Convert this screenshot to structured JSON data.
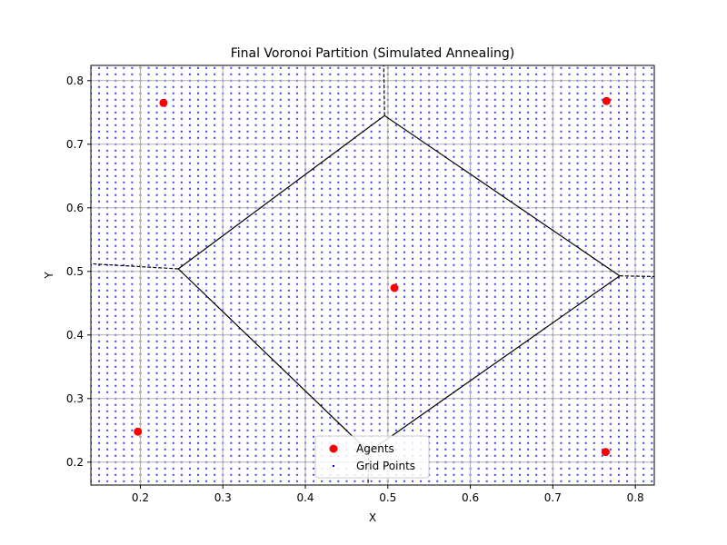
{
  "chart_data": {
    "type": "scatter",
    "title": "Final Voronoi Partition (Simulated Annealing)",
    "xlabel": "X",
    "ylabel": "Y",
    "xlim": [
      0.14,
      0.823
    ],
    "ylim": [
      0.164,
      0.824
    ],
    "xticks": [
      0.2,
      0.3,
      0.4,
      0.5,
      0.6,
      0.7,
      0.8
    ],
    "yticks": [
      0.2,
      0.3,
      0.4,
      0.5,
      0.6,
      0.7,
      0.8
    ],
    "xtick_labels": [
      "0.2",
      "0.3",
      "0.4",
      "0.5",
      "0.6",
      "0.7",
      "0.8"
    ],
    "ytick_labels": [
      "0.2",
      "0.3",
      "0.4",
      "0.5",
      "0.6",
      "0.7",
      "0.8"
    ],
    "grid": true,
    "legend_position": "lower center",
    "colors": {
      "agents": "#ff0000",
      "grid_points": "#0000ff",
      "edges": "#000000",
      "gridlines": "#b0b0b0"
    },
    "series": [
      {
        "name": "Agents",
        "marker": "circle",
        "points": [
          {
            "x": 0.228,
            "y": 0.765
          },
          {
            "x": 0.765,
            "y": 0.768
          },
          {
            "x": 0.508,
            "y": 0.474
          },
          {
            "x": 0.197,
            "y": 0.248
          },
          {
            "x": 0.764,
            "y": 0.216
          }
        ]
      },
      {
        "name": "Grid Points",
        "marker": "dot",
        "grid": {
          "start": 0.14,
          "end": 0.823,
          "step": 0.01
        }
      }
    ],
    "voronoi_vertices": [
      {
        "x": 0.496,
        "y": 0.745
      },
      {
        "x": 0.781,
        "y": 0.493
      },
      {
        "x": 0.477,
        "y": 0.216
      },
      {
        "x": 0.246,
        "y": 0.504
      }
    ],
    "voronoi_edges_solid": [
      [
        {
          "x": 0.496,
          "y": 0.745
        },
        {
          "x": 0.781,
          "y": 0.493
        }
      ],
      [
        {
          "x": 0.781,
          "y": 0.493
        },
        {
          "x": 0.477,
          "y": 0.216
        }
      ],
      [
        {
          "x": 0.477,
          "y": 0.216
        },
        {
          "x": 0.246,
          "y": 0.504
        }
      ],
      [
        {
          "x": 0.246,
          "y": 0.504
        },
        {
          "x": 0.496,
          "y": 0.745
        }
      ]
    ],
    "voronoi_edges_dashed": [
      [
        {
          "x": 0.496,
          "y": 0.745
        },
        {
          "x": 0.495,
          "y": 0.824
        }
      ],
      [
        {
          "x": 0.781,
          "y": 0.493
        },
        {
          "x": 0.823,
          "y": 0.492
        }
      ],
      [
        {
          "x": 0.246,
          "y": 0.504
        },
        {
          "x": 0.14,
          "y": 0.512
        }
      ],
      [
        {
          "x": 0.477,
          "y": 0.216
        },
        {
          "x": 0.476,
          "y": 0.164
        }
      ]
    ]
  }
}
